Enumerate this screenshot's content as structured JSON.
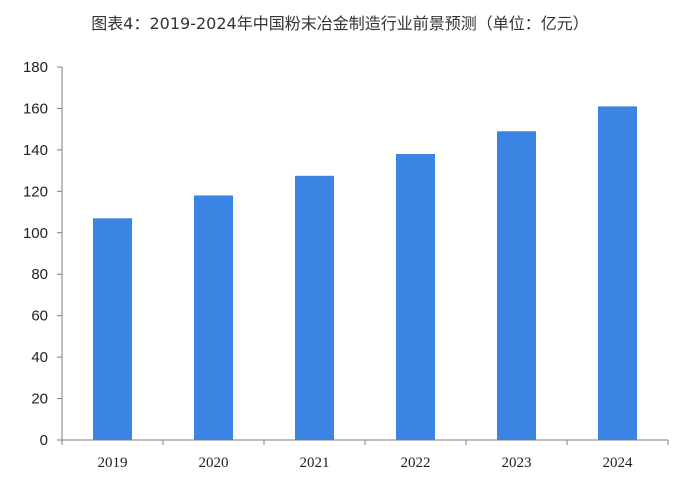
{
  "title": "图表4：2019-2024年中国粉末冶金制造行业前景预测（单位：亿元）",
  "colors": {
    "bar": "#3c84e4",
    "axis": "#7f7f7f",
    "text": "#222222"
  },
  "chart_data": {
    "type": "bar",
    "title": "图表4：2019-2024年中国粉末冶金制造行业前景预测（单位：亿元）",
    "categories": [
      "2019",
      "2020",
      "2021",
      "2022",
      "2023",
      "2024"
    ],
    "series": [
      {
        "values": [
          107,
          118,
          127.5,
          138,
          149,
          161
        ]
      }
    ],
    "xlabel": "",
    "ylabel": "",
    "ylim": [
      0,
      180
    ],
    "yticks": [
      0,
      20,
      40,
      60,
      80,
      100,
      120,
      140,
      160,
      180
    ],
    "grid": false,
    "legend": "none"
  }
}
